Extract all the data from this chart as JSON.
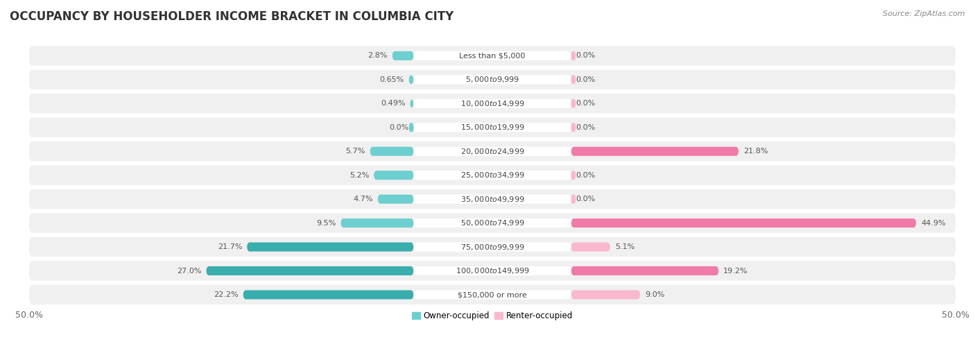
{
  "title": "OCCUPANCY BY HOUSEHOLDER INCOME BRACKET IN COLUMBIA CITY",
  "source": "Source: ZipAtlas.com",
  "categories": [
    "Less than $5,000",
    "$5,000 to $9,999",
    "$10,000 to $14,999",
    "$15,000 to $19,999",
    "$20,000 to $24,999",
    "$25,000 to $34,999",
    "$35,000 to $49,999",
    "$50,000 to $74,999",
    "$75,000 to $99,999",
    "$100,000 to $149,999",
    "$150,000 or more"
  ],
  "owner_values": [
    2.8,
    0.65,
    0.49,
    0.0,
    5.7,
    5.2,
    4.7,
    9.5,
    21.7,
    27.0,
    22.2
  ],
  "renter_values": [
    0.0,
    0.0,
    0.0,
    0.0,
    21.8,
    0.0,
    0.0,
    44.9,
    5.1,
    19.2,
    9.0
  ],
  "owner_color_light": "#6dcfcf",
  "owner_color_dark": "#3aadad",
  "renter_color_light": "#f9b8ce",
  "renter_color_dark": "#f07aaa",
  "bg_row_color": "#f0f0f0",
  "bg_alt_color": "#ffffff",
  "label_pill_color": "#ffffff",
  "axis_limit": 50.0,
  "title_fontsize": 12,
  "label_fontsize": 8,
  "cat_fontsize": 8,
  "tick_fontsize": 9,
  "source_fontsize": 8,
  "owner_val_labels": [
    "2.8%",
    "0.65%",
    "0.49%",
    "0.0%",
    "5.7%",
    "5.2%",
    "4.7%",
    "9.5%",
    "21.7%",
    "27.0%",
    "22.2%"
  ],
  "renter_val_labels": [
    "0.0%",
    "0.0%",
    "0.0%",
    "0.0%",
    "21.8%",
    "0.0%",
    "0.0%",
    "44.9%",
    "5.1%",
    "19.2%",
    "9.0%"
  ]
}
